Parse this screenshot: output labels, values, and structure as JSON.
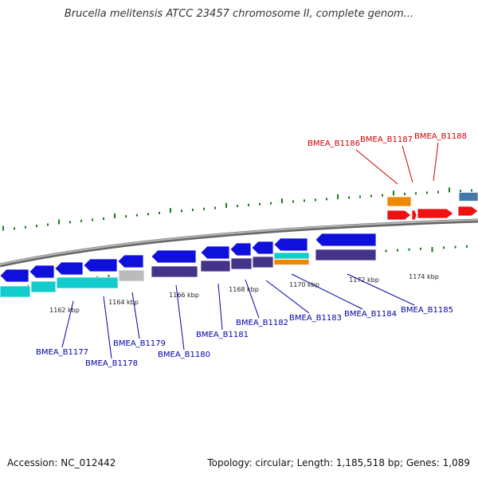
{
  "header": {
    "title": "Brucella melitensis ATCC 23457 chromosome II, complete genom..."
  },
  "footer": {
    "accession": "Accession: NC_012442",
    "summary": "Topology: circular; Length: 1,185,518 bp; Genes: 1,089"
  },
  "scale": {
    "ticks": [
      "1162 kbp",
      "1164 kbp",
      "1166 kbp",
      "1168 kbp",
      "1170 kbp",
      "1172 kbp",
      "1174 kbp"
    ]
  },
  "genes": {
    "forward_highlighted": [
      "BMEA_B1186",
      "BMEA_B1187",
      "BMEA_B1188"
    ],
    "reverse_highlighted": [
      "BMEA_B1177",
      "BMEA_B1178",
      "BMEA_B1179",
      "BMEA_B1180",
      "BMEA_B1181",
      "BMEA_B1182",
      "BMEA_B1183",
      "BMEA_B1184",
      "BMEA_B1185"
    ]
  },
  "colors": {
    "forward_label": "#cc0000",
    "reverse_label": "#0000aa",
    "backbone": "#888888",
    "tick": "#1a7a1a",
    "cds_blue": "#1010dd",
    "cds_red": "#ee1111",
    "cds_orange": "#ee8800",
    "cds_cyan": "#11cccc",
    "cds_purple": "#443388",
    "cds_grey": "#bbbbbb",
    "cds_steel": "#4477aa"
  }
}
